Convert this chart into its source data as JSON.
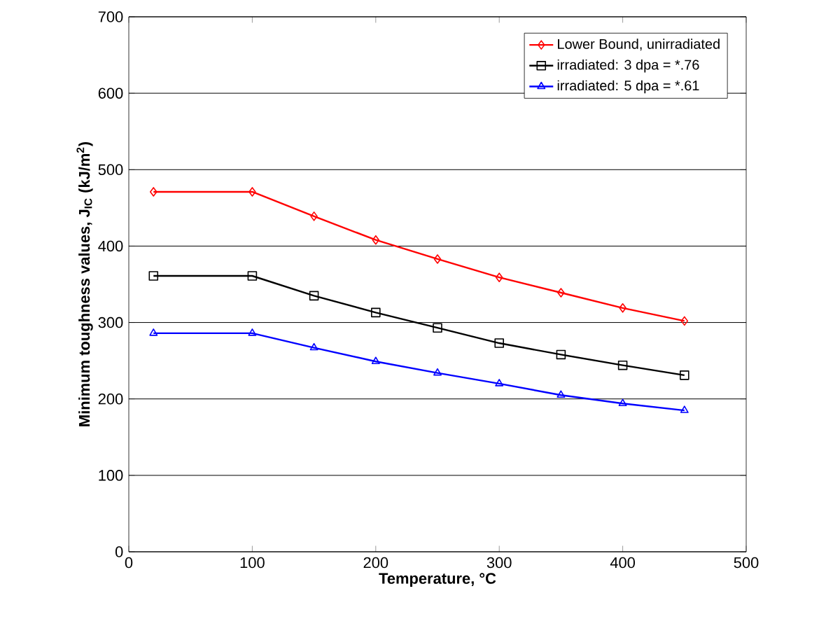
{
  "chart_data": {
    "type": "line",
    "xlabel": "Temperature, °C",
    "ylabel": "Minimum toughness values, J$_{IC}$ (kJ/m$^{2}$)",
    "x": [
      20,
      100,
      150,
      200,
      250,
      300,
      350,
      400,
      450
    ],
    "series": [
      {
        "name": "Lower Bound, unirradiated",
        "color": "#ff0000",
        "marker": "diamond",
        "values": [
          471,
          471,
          439,
          408,
          383,
          359,
          339,
          319,
          302
        ]
      },
      {
        "name": "irradiated: 3 dpa = *.76",
        "color": "#000000",
        "marker": "square",
        "values": [
          361,
          361,
          335,
          313,
          293,
          273,
          258,
          244,
          231
        ]
      },
      {
        "name": "irradiated: 5 dpa = *.61",
        "color": "#0000ff",
        "marker": "triangle",
        "values": [
          286,
          286,
          267,
          249,
          234,
          220,
          205,
          194,
          185
        ]
      }
    ],
    "xlim": [
      0,
      500
    ],
    "xticks": [
      0,
      100,
      200,
      300,
      400,
      500
    ],
    "ylim": [
      0,
      700
    ],
    "yticks": [
      0,
      100,
      200,
      300,
      400,
      500,
      600,
      700
    ],
    "grid": "y",
    "legend": "top right",
    "line_style": "solid"
  }
}
